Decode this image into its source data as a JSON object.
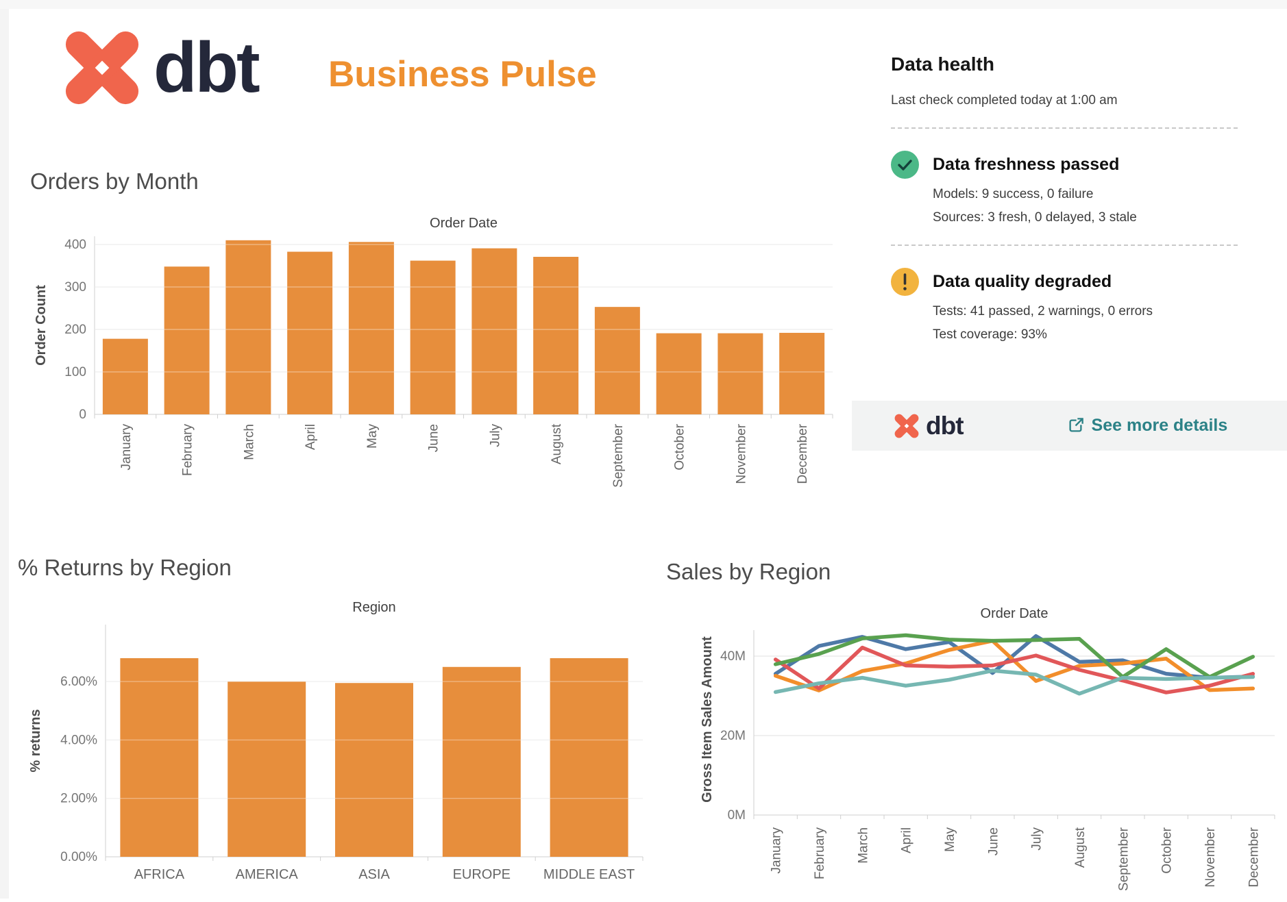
{
  "header": {
    "brand": "dbt",
    "title": "Business Pulse"
  },
  "data_health": {
    "title": "Data health",
    "subtitle": "Last check completed today at 1:00 am",
    "items": [
      {
        "status": "passed",
        "icon": "check-circle",
        "title": "Data freshness passed",
        "lines": [
          "Models: 9 success, 0 failure",
          "Sources: 3 fresh, 0 delayed, 3 stale"
        ]
      },
      {
        "status": "warning",
        "icon": "exclamation-circle",
        "title": "Data quality degraded",
        "lines": [
          "Tests: 41 passed, 2 warnings, 0 errors",
          "Test coverage: 93%"
        ]
      }
    ],
    "footer": {
      "brand": "dbt",
      "link_label": "See more details"
    }
  },
  "colors": {
    "brand_orange": "#ee9030",
    "logo_coral": "#f0654c",
    "wordmark_navy": "#24283a",
    "bar_orange": "#e78e3c",
    "link_teal": "#2c8287",
    "status_green": "#4bb887",
    "status_amber": "#f2b33e",
    "grid": "#ebebeb",
    "axis": "#cfcfcf",
    "tick_text": "#757575",
    "label_text": "#666666"
  },
  "chart_data": [
    {
      "id": "orders_by_month",
      "type": "bar",
      "title": "Orders by Month",
      "axis_title": "Order Date",
      "xlabel": "Order Date",
      "ylabel": "Order Count",
      "categories": [
        "January",
        "February",
        "March",
        "April",
        "May",
        "June",
        "July",
        "August",
        "September",
        "October",
        "November",
        "December"
      ],
      "values": [
        178,
        348,
        410,
        383,
        406,
        362,
        391,
        371,
        253,
        191,
        191,
        192
      ],
      "yticks": [
        0,
        100,
        200,
        300,
        400
      ],
      "ylim": [
        0,
        420
      ],
      "grid": true,
      "bar_color": "#e78e3c"
    },
    {
      "id": "returns_by_region",
      "type": "bar",
      "title": "% Returns by Region",
      "axis_title": "Region",
      "xlabel": "Region",
      "ylabel": "% returns",
      "categories": [
        "AFRICA",
        "AMERICA",
        "ASIA",
        "EUROPE",
        "MIDDLE EAST"
      ],
      "values": [
        6.8,
        6.0,
        5.95,
        6.5,
        6.8
      ],
      "yticks": [
        0,
        2,
        4,
        6
      ],
      "ytick_suffix": "%",
      "ylim": [
        0,
        7.95
      ],
      "grid": true,
      "bar_color": "#e78e3c"
    },
    {
      "id": "sales_by_region",
      "type": "line",
      "title": "Sales by Region",
      "axis_title": "Order Date",
      "xlabel": "Order Date",
      "ylabel": "Gross Item Sales Amount",
      "categories": [
        "January",
        "February",
        "March",
        "April",
        "May",
        "June",
        "July",
        "August",
        "September",
        "October",
        "November",
        "December"
      ],
      "series": [
        {
          "name": "blue",
          "color": "#4e79a7",
          "values": [
            34.0,
            41.0,
            43.3,
            40.2,
            42.0,
            34.2,
            43.5,
            37.0,
            37.4,
            34.0,
            33.0,
            33.3
          ]
        },
        {
          "name": "orange",
          "color": "#f28e2b",
          "values": [
            33.5,
            29.8,
            34.7,
            36.6,
            40.0,
            42.3,
            32.2,
            36.0,
            36.6,
            37.8,
            29.9,
            30.3
          ]
        },
        {
          "name": "red",
          "color": "#e15759",
          "values": [
            37.6,
            30.3,
            40.6,
            36.1,
            35.8,
            36.1,
            38.6,
            35.0,
            32.3,
            29.3,
            31.0,
            34.0
          ]
        },
        {
          "name": "green",
          "color": "#59a14f",
          "values": [
            36.4,
            39.0,
            42.9,
            43.7,
            42.6,
            42.3,
            42.5,
            42.8,
            33.2,
            40.2,
            33.2,
            38.3
          ]
        },
        {
          "name": "teal",
          "color": "#76b7b2",
          "values": [
            29.4,
            31.6,
            33.0,
            31.0,
            32.5,
            34.8,
            33.8,
            29.0,
            33.0,
            32.7,
            33.0,
            33.2
          ]
        }
      ],
      "yticks": [
        0,
        20,
        40
      ],
      "ytick_suffix": "M",
      "ylim": [
        0,
        45
      ],
      "grid": true,
      "legend": "none"
    }
  ]
}
